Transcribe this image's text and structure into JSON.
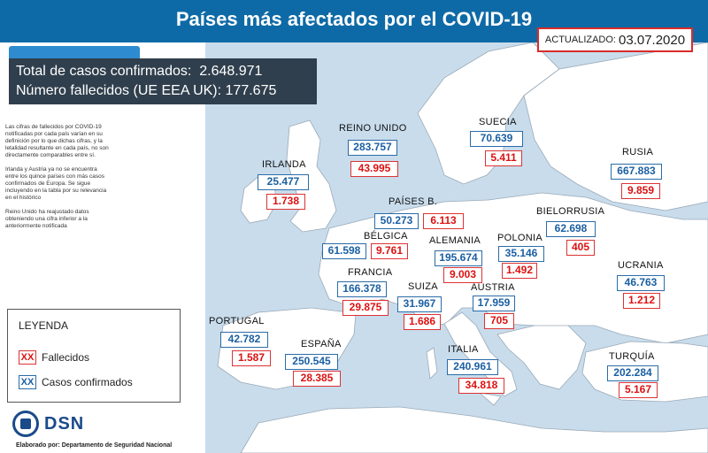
{
  "title": "Países más afectados por el COVID-19",
  "updated": {
    "label": "ACTUALIZADO:",
    "date": "03.07.2020"
  },
  "totals": {
    "confirmed_label": "Total de casos confirmados:",
    "confirmed_value": "2.648.971",
    "deaths_label": "Número fallecidos (UE EEA UK):",
    "deaths_value": "177.675"
  },
  "notes": [
    "Las cifras de fallecidos por COVID-19 notificadas por cada país varían en su definición por lo que dichas cifras, y la letalidad resultante en cada país, no son directamente comparables entre sí.",
    "Irlanda y Austria ya no se encuentra entre los quince países con más casos confirmados de Europa. Se sigue incluyendo en la tabla por su relevancia en el histórico",
    "Reino Unido ha reajustado datos obteniendo una cifra inferior a la anteriormente notificada"
  ],
  "legend": {
    "title": "LEYENDA",
    "deaths_swatch": "XX",
    "deaths_label": "Fallecidos",
    "confirmed_swatch": "XX",
    "confirmed_label": "Casos confirmados"
  },
  "logo": {
    "text": "DSN"
  },
  "credit": "Elaborado por: Departamento de Seguridad Nacional",
  "countries": {
    "reino_unido": {
      "name": "REINO UNIDO",
      "confirmed": "283.757",
      "deaths": "43.995"
    },
    "suecia": {
      "name": "SUECIA",
      "confirmed": "70.639",
      "deaths": "5.411"
    },
    "rusia": {
      "name": "RUSIA",
      "confirmed": "667.883",
      "deaths": "9.859"
    },
    "irlanda": {
      "name": "IRLANDA",
      "confirmed": "25.477",
      "deaths": "1.738"
    },
    "paises_bajos": {
      "name": "PAÍSES B.",
      "confirmed": "50.273",
      "deaths": "6.113"
    },
    "bielorrusia": {
      "name": "BIELORRUSIA",
      "confirmed": "62.698",
      "deaths": "405"
    },
    "belgica": {
      "name": "BÉLGICA",
      "confirmed": "61.598",
      "deaths": "9.761"
    },
    "alemania": {
      "name": "ALEMANIA",
      "confirmed": "195.674",
      "deaths": "9.003"
    },
    "polonia": {
      "name": "POLONIA",
      "confirmed": "35.146",
      "deaths": "1.492"
    },
    "ucrania": {
      "name": "UCRANIA",
      "confirmed": "46.763",
      "deaths": "1.212"
    },
    "francia": {
      "name": "FRANCIA",
      "confirmed": "166.378",
      "deaths": "29.875"
    },
    "suiza": {
      "name": "SUIZA",
      "confirmed": "31.967",
      "deaths": "1.686"
    },
    "austria": {
      "name": "AUSTRIA",
      "confirmed": "17.959",
      "deaths": "705"
    },
    "portugal": {
      "name": "PORTUGAL",
      "confirmed": "42.782",
      "deaths": "1.587"
    },
    "espana": {
      "name": "ESPAÑA",
      "confirmed": "250.545",
      "deaths": "28.385"
    },
    "italia": {
      "name": "ITALIA",
      "confirmed": "240.961",
      "deaths": "34.818"
    },
    "turquia": {
      "name": "TURQUÍA",
      "confirmed": "202.284",
      "deaths": "5.167"
    }
  },
  "colors": {
    "header": "#0e6aa6",
    "confirmed": "#1a5fa3",
    "deaths": "#d11",
    "sea": "#c8dcec",
    "land": "#ffffff"
  }
}
